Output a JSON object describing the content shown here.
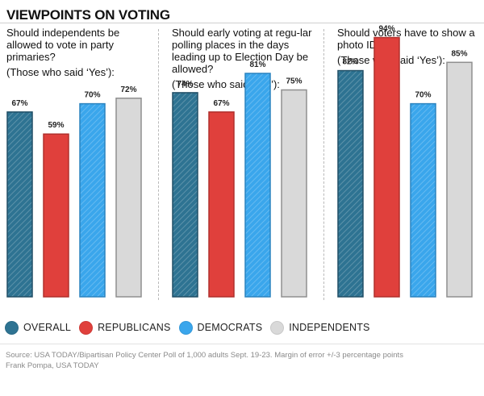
{
  "title": "VIEWPOINTS ON VOTING",
  "legend": [
    {
      "label": "OVERALL",
      "color": "#2e7392"
    },
    {
      "label": "REPUBLICANS",
      "color": "#e0403c"
    },
    {
      "label": "DEMOCRATS",
      "color": "#3aa6ec"
    },
    {
      "label": "INDEPENDENTS",
      "color": "#d9d9d9"
    }
  ],
  "chart_data": [
    {
      "type": "bar",
      "title": "Should independents be allowed to vote in party primaries?",
      "note": "(Those who said ‘Yes’):",
      "categories": [
        "OVERALL",
        "REPUBLICANS",
        "DEMOCRATS",
        "INDEPENDENTS"
      ],
      "values": [
        67,
        59,
        70,
        72
      ],
      "labels": [
        "67%",
        "59%",
        "70%",
        "72%"
      ],
      "ylim": [
        0,
        100
      ]
    },
    {
      "type": "bar",
      "title": "Should early voting at regu-lar polling places in the days leading up to Election Day be allowed?",
      "note": "(Those who said ‘Yes’):",
      "categories": [
        "OVERALL",
        "REPUBLICANS",
        "DEMOCRATS",
        "INDEPENDENTS"
      ],
      "values": [
        74,
        67,
        81,
        75
      ],
      "labels": [
        "74%",
        "67%",
        "81%",
        "75%"
      ],
      "ylim": [
        0,
        100
      ]
    },
    {
      "type": "bar",
      "title": "Should voters have to show a photo ID?",
      "note": "(Those who said ‘Yes’):",
      "categories": [
        "OVERALL",
        "REPUBLICANS",
        "DEMOCRATS",
        "INDEPENDENTS"
      ],
      "values": [
        82,
        94,
        70,
        85
      ],
      "labels": [
        "82%",
        "94%",
        "70%",
        "85%"
      ],
      "ylim": [
        0,
        100
      ]
    }
  ],
  "source": "Source: USA TODAY/Bipartisan Policy Center Poll of 1,000 adults Sept. 19-23. Margin of error +/-3 percentage points",
  "credit": "Frank Pompa, USA TODAY"
}
